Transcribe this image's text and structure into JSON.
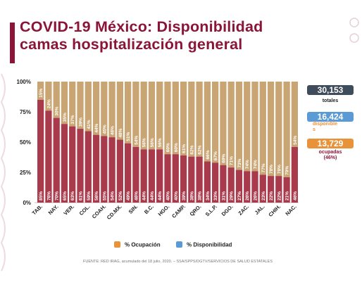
{
  "title": {
    "line1": "COVID-19 México: Disponibilidad",
    "line2": "camas hospitalización general"
  },
  "stats": {
    "total": {
      "value": "30,153",
      "caption": "totales",
      "color": "#3e4c5c"
    },
    "available": {
      "value": "16,424",
      "caption": "disponible\ns",
      "color": "#5b9bd5",
      "caption_color": "#e8923a"
    },
    "occupied": {
      "value": "13,729",
      "caption": "ocupadas\n(46%)",
      "color": "#e8923a",
      "caption_color": "#8a1538"
    }
  },
  "legend": {
    "occupancy": {
      "label": "% Ocupación",
      "color": "#e8923a"
    },
    "availability": {
      "label": "% Disponibilidad",
      "color": "#5b9bd5"
    }
  },
  "source": "FUENTE: RED IRAG, acumulado del 18 julio, 2020. – SSA/SPPS/DGTV/SERVICIOS DE SALUD ESTATALES",
  "colors": {
    "occupied_bar": "#a83a4c",
    "available_bar": "#c8a572",
    "brand": "#8a1538"
  },
  "chart_data": {
    "type": "bar",
    "stacked": true,
    "ylim": [
      0,
      100
    ],
    "yticks": [
      "0%",
      "25%",
      "50%",
      "75%",
      "100%"
    ],
    "grid": false,
    "categories": [
      "TAB.",
      "",
      "NAY.",
      "",
      "VER.",
      "",
      "COL.",
      "",
      "COAH.",
      "",
      "CD.MX.",
      "",
      "SIN.",
      "",
      "B.C.",
      "",
      "HGO.",
      "",
      "CAMP.",
      "",
      "QRO.",
      "",
      "S.L.P.",
      "",
      "DGO.",
      "",
      "ZAC.",
      "",
      "JAL.",
      "",
      "CHIH.",
      "",
      "NAC."
    ],
    "series": [
      {
        "key": "occupied",
        "values": [
          85,
          76,
          70,
          65,
          63,
          61,
          59,
          56,
          55,
          54,
          52,
          49,
          46,
          44,
          44,
          44,
          40,
          40,
          39,
          38,
          38,
          34,
          33,
          31,
          29,
          27,
          26,
          26,
          23,
          22,
          22,
          21,
          46
        ]
      },
      {
        "key": "available",
        "values": [
          15,
          24,
          30,
          35,
          37,
          39,
          41,
          44,
          45,
          46,
          48,
          51,
          54,
          56,
          56,
          56,
          60,
          60,
          61,
          62,
          62,
          66,
          67,
          69,
          71,
          73,
          74,
          74,
          77,
          78,
          78,
          79,
          54
        ]
      }
    ]
  }
}
